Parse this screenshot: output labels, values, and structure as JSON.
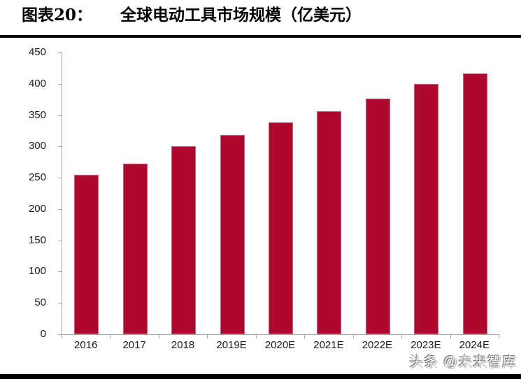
{
  "header": {
    "figure_label": "图表20：",
    "figure_title": "全球电动工具市场规模（亿美元）"
  },
  "chart_data": {
    "type": "bar",
    "title": "全球电动工具市场规模（亿美元）",
    "categories": [
      "2016",
      "2017",
      "2018",
      "2019E",
      "2020E",
      "2021E",
      "2022E",
      "2023E",
      "2024E"
    ],
    "values": [
      255,
      273,
      300,
      318,
      338,
      356,
      376,
      400,
      417
    ],
    "xlabel": "",
    "ylabel": "",
    "ylim": [
      0,
      450
    ],
    "yticks": [
      0,
      50,
      100,
      150,
      200,
      250,
      300,
      350,
      400,
      450
    ],
    "grid": false,
    "legend_position": "none",
    "bar_color": "#AE082F",
    "axis_color": "#A6A6A6"
  },
  "footer": {
    "watermark": "头条 @未来智库"
  }
}
